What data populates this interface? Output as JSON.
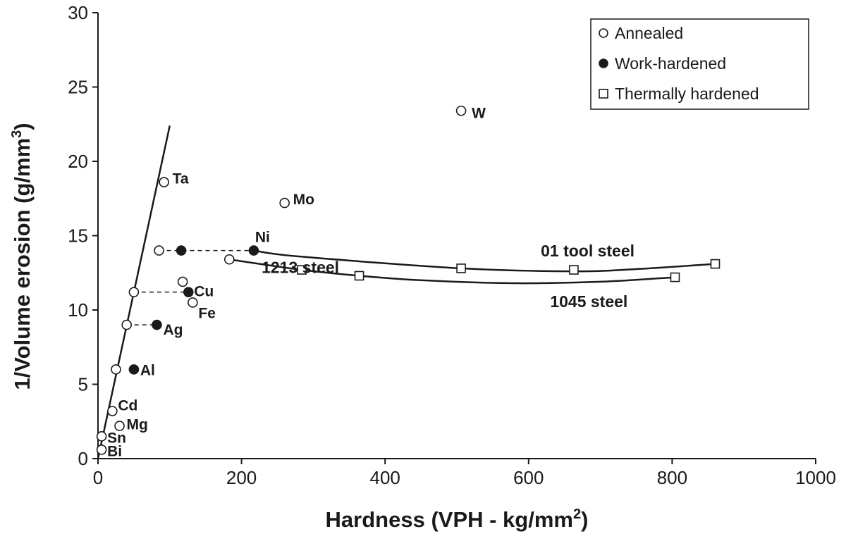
{
  "chart_data": {
    "type": "scatter",
    "xlabel": "Hardness (VPH - kg/mm",
    "xlabel_sup": "2",
    "xlabel_end": ")",
    "ylabel": "1/Volume erosion (g/mm",
    "ylabel_sup": "3",
    "ylabel_end": ")",
    "xlim": [
      0,
      1000
    ],
    "ylim": [
      0,
      30
    ],
    "x_ticks": [
      0,
      200,
      400,
      600,
      800,
      1000
    ],
    "y_ticks": [
      0,
      5,
      10,
      15,
      20,
      25,
      30
    ],
    "grid": false,
    "legend_position": "top-right",
    "legend": [
      {
        "label": "Annealed",
        "marker": "open-circle"
      },
      {
        "label": "Work-hardened",
        "marker": "filled-circle"
      },
      {
        "label": "Thermally hardened",
        "marker": "open-square"
      }
    ],
    "series": [
      {
        "name": "Annealed",
        "marker": "open-circle",
        "points": [
          {
            "label": "Bi",
            "x": 5,
            "y": 0.6
          },
          {
            "label": "Sn",
            "x": 5,
            "y": 1.5
          },
          {
            "label": "Mg",
            "x": 30,
            "y": 2.2
          },
          {
            "label": "Cd",
            "x": 20,
            "y": 3.2
          },
          {
            "label": "",
            "x": 25,
            "y": 6.0
          },
          {
            "label": "",
            "x": 40,
            "y": 9.0
          },
          {
            "label": "",
            "x": 50,
            "y": 11.2
          },
          {
            "label": "",
            "x": 85,
            "y": 14.0
          },
          {
            "label": "Ta",
            "x": 92,
            "y": 18.6
          },
          {
            "label": "Fe",
            "x": 132,
            "y": 10.5
          },
          {
            "label": "",
            "x": 118,
            "y": 11.9
          },
          {
            "label": "",
            "x": 183,
            "y": 13.4
          },
          {
            "label": "Mo",
            "x": 260,
            "y": 17.2
          },
          {
            "label": "W",
            "x": 506,
            "y": 23.4
          }
        ]
      },
      {
        "name": "Work-hardened",
        "marker": "filled-circle",
        "points": [
          {
            "label": "Al",
            "x": 50,
            "y": 6.0
          },
          {
            "label": "Ag",
            "x": 82,
            "y": 9.0
          },
          {
            "label": "Cu",
            "x": 126,
            "y": 11.2
          },
          {
            "label": "",
            "x": 116,
            "y": 14.0
          },
          {
            "label": "Ni",
            "x": 217,
            "y": 14.0
          }
        ]
      },
      {
        "name": "Thermally hardened",
        "marker": "open-square",
        "points": [
          {
            "label": "",
            "x": 284,
            "y": 12.7
          },
          {
            "label": "",
            "x": 364,
            "y": 12.3
          },
          {
            "label": "",
            "x": 506,
            "y": 12.8
          },
          {
            "label": "",
            "x": 663,
            "y": 12.7
          },
          {
            "label": "",
            "x": 804,
            "y": 12.2
          },
          {
            "label": "",
            "x": 860,
            "y": 13.1
          }
        ]
      }
    ],
    "dashed_links": [
      {
        "from": [
          85,
          14.0
        ],
        "to": [
          217,
          14.0
        ]
      },
      {
        "from": [
          50,
          11.2
        ],
        "to": [
          126,
          11.2
        ]
      },
      {
        "from": [
          40,
          9.0
        ],
        "to": [
          82,
          9.0
        ]
      }
    ],
    "fit_line": {
      "from": [
        0,
        0
      ],
      "to": [
        100,
        22.4
      ]
    },
    "curves": [
      {
        "label": "01 tool steel",
        "points": [
          [
            217,
            14.0
          ],
          [
            280,
            13.6
          ],
          [
            506,
            12.8
          ],
          [
            663,
            12.6
          ],
          [
            750,
            12.75
          ],
          [
            860,
            13.1
          ]
        ]
      },
      {
        "label": "1045 steel",
        "points": [
          [
            183,
            13.4
          ],
          [
            284,
            12.7
          ],
          [
            364,
            12.3
          ],
          [
            450,
            12.0
          ],
          [
            580,
            11.8
          ],
          [
            700,
            11.9
          ],
          [
            804,
            12.2
          ]
        ]
      }
    ],
    "curve_labels": [
      {
        "text": "01 tool steel",
        "x": 617,
        "y": 13.6
      },
      {
        "text": "1213 steel",
        "x": 228,
        "y": 12.5
      },
      {
        "text": "1045 steel",
        "x": 630,
        "y": 10.2
      }
    ]
  }
}
